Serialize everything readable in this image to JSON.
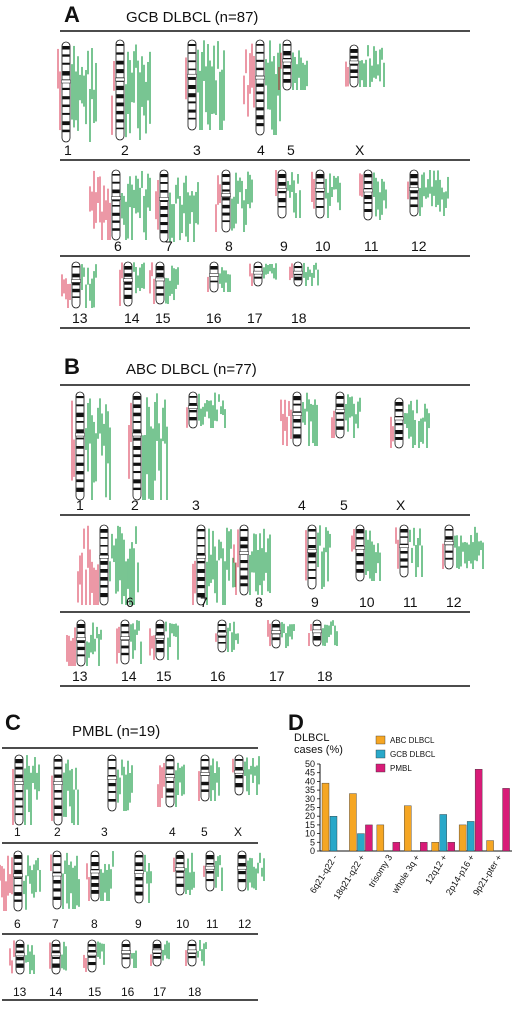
{
  "colors": {
    "loss": "#e0546a",
    "gain": "#1f9e4a",
    "band": "#111111",
    "abc": "#f5a623",
    "gcb": "#29a8c9",
    "pmbl": "#d81b78"
  },
  "panels": {
    "A": {
      "letter": "A",
      "title": "GCB DLBCL (n=87)"
    },
    "B": {
      "letter": "B",
      "title": "ABC DLBCL (n=77)"
    },
    "C": {
      "letter": "C",
      "title": "PMBL (n=19)"
    },
    "D": {
      "letter": "D"
    }
  },
  "chromosome_labels": {
    "A": [
      "1",
      "2",
      "3",
      "4",
      "5",
      "X",
      "6",
      "7",
      "8",
      "9",
      "10",
      "11",
      "12",
      "13",
      "14",
      "15",
      "16",
      "17",
      "18"
    ],
    "B": [
      "1",
      "2",
      "3",
      "4",
      "5",
      "X",
      "6",
      "7",
      "8",
      "9",
      "10",
      "11",
      "12",
      "13",
      "14",
      "15",
      "16",
      "17",
      "18"
    ],
    "C": [
      "1",
      "2",
      "3",
      "4",
      "5",
      "X",
      "6",
      "7",
      "8",
      "9",
      "10",
      "11",
      "12",
      "13",
      "14",
      "15",
      "16",
      "17",
      "18"
    ]
  },
  "chart_data": {
    "type": "bar",
    "ylabel": "DLBCL cases (%)",
    "ylabel_lines": [
      "DLBCL",
      "cases (%)"
    ],
    "ylim": [
      0,
      50
    ],
    "yticks": [
      "0",
      "5",
      "10",
      "15",
      "20",
      "25",
      "30",
      "35",
      "40",
      "45",
      "50"
    ],
    "categories": [
      "6q21-q22 -",
      "18q21-q22 +",
      "trisomy 3",
      "whole 3q +",
      "12q12 +",
      "2p14-p16 +",
      "9p21-pter +"
    ],
    "series": [
      {
        "name": "ABC DLBCL",
        "values": [
          39,
          33,
          15,
          26,
          5,
          15,
          6
        ]
      },
      {
        "name": "GCB DLBCL",
        "values": [
          20,
          10,
          0,
          0,
          21,
          17,
          0
        ]
      },
      {
        "name": "PMBL",
        "values": [
          0,
          15,
          5,
          5,
          5,
          47,
          36
        ]
      }
    ],
    "legend_position": "top"
  }
}
